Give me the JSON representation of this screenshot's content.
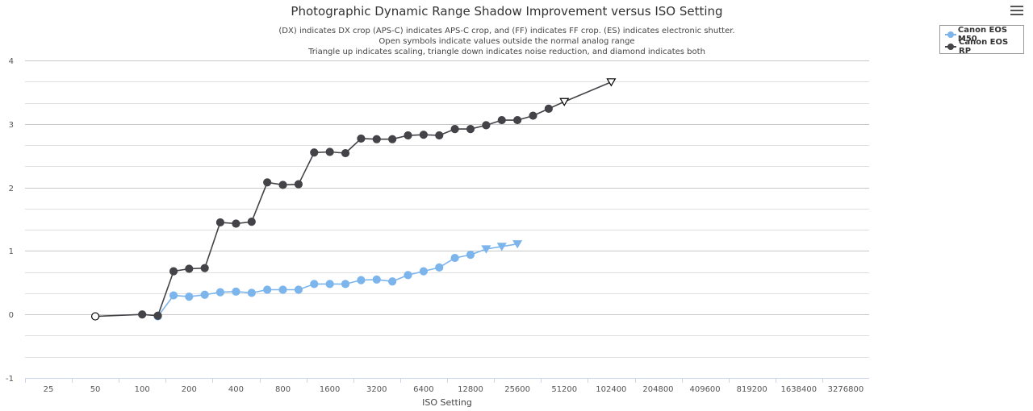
{
  "chart_data": {
    "type": "line",
    "title": "Photographic Dynamic Range Shadow Improvement versus ISO Setting",
    "subtitle_lines": [
      "(DX) indicates DX crop (APS-C) indicates APS-C crop, and (FF) indicates FF crop. (ES) indicates electronic shutter.",
      "Open symbols indicate values outside the normal analog range",
      "Triangle up indicates scaling, triangle down indicates noise reduction, and diamond indicates both"
    ],
    "xlabel": "ISO Setting",
    "ylabel": "",
    "x_scale": "log2",
    "x_ticks": [
      25,
      50,
      100,
      200,
      400,
      800,
      1600,
      3200,
      6400,
      12800,
      25600,
      51200,
      102400,
      204800,
      409600,
      819200,
      1638400,
      3276800
    ],
    "x_tick_labels": [
      "25",
      "50",
      "100",
      "200",
      "400",
      "800",
      "1600",
      "3200",
      "6400",
      "12800",
      "25600",
      "51200",
      "102400",
      "204800",
      "409600",
      "819200",
      "1638400",
      "3276800"
    ],
    "xlim": [
      17.7,
      4634000
    ],
    "y_ticks": [
      -1,
      0,
      1,
      2,
      3,
      4
    ],
    "ylim": [
      -1,
      4
    ],
    "grid": true,
    "legend_position": "top-right",
    "series": [
      {
        "name": "Canon EOS M50",
        "color": "#7cb5ec",
        "points": [
          {
            "x": 126,
            "y": -0.03,
            "marker": "circle"
          },
          {
            "x": 159,
            "y": 0.3,
            "marker": "circle"
          },
          {
            "x": 200,
            "y": 0.28,
            "marker": "circle"
          },
          {
            "x": 252,
            "y": 0.31,
            "marker": "circle"
          },
          {
            "x": 317,
            "y": 0.35,
            "marker": "circle"
          },
          {
            "x": 400,
            "y": 0.36,
            "marker": "circle"
          },
          {
            "x": 504,
            "y": 0.34,
            "marker": "circle"
          },
          {
            "x": 635,
            "y": 0.39,
            "marker": "circle"
          },
          {
            "x": 800,
            "y": 0.39,
            "marker": "circle"
          },
          {
            "x": 1008,
            "y": 0.39,
            "marker": "circle"
          },
          {
            "x": 1270,
            "y": 0.48,
            "marker": "circle"
          },
          {
            "x": 1600,
            "y": 0.48,
            "marker": "circle"
          },
          {
            "x": 2016,
            "y": 0.48,
            "marker": "circle"
          },
          {
            "x": 2540,
            "y": 0.54,
            "marker": "circle"
          },
          {
            "x": 3200,
            "y": 0.55,
            "marker": "circle"
          },
          {
            "x": 4032,
            "y": 0.52,
            "marker": "circle"
          },
          {
            "x": 5080,
            "y": 0.62,
            "marker": "circle"
          },
          {
            "x": 6400,
            "y": 0.68,
            "marker": "circle"
          },
          {
            "x": 8063,
            "y": 0.74,
            "marker": "circle"
          },
          {
            "x": 10159,
            "y": 0.89,
            "marker": "circle"
          },
          {
            "x": 12800,
            "y": 0.94,
            "marker": "circle"
          },
          {
            "x": 16127,
            "y": 1.03,
            "marker": "triangle-down"
          },
          {
            "x": 20319,
            "y": 1.07,
            "marker": "triangle-down"
          },
          {
            "x": 25600,
            "y": 1.11,
            "marker": "triangle-down"
          }
        ]
      },
      {
        "name": "Canon EOS RP",
        "color": "#434348",
        "points": [
          {
            "x": 50,
            "y": -0.03,
            "marker": "circle-open"
          },
          {
            "x": 100,
            "y": 0.0,
            "marker": "circle"
          },
          {
            "x": 126,
            "y": -0.02,
            "marker": "circle"
          },
          {
            "x": 159,
            "y": 0.68,
            "marker": "circle"
          },
          {
            "x": 200,
            "y": 0.72,
            "marker": "circle"
          },
          {
            "x": 252,
            "y": 0.73,
            "marker": "circle"
          },
          {
            "x": 317,
            "y": 1.45,
            "marker": "circle"
          },
          {
            "x": 400,
            "y": 1.43,
            "marker": "circle"
          },
          {
            "x": 504,
            "y": 1.46,
            "marker": "circle"
          },
          {
            "x": 635,
            "y": 2.08,
            "marker": "circle"
          },
          {
            "x": 800,
            "y": 2.04,
            "marker": "circle"
          },
          {
            "x": 1008,
            "y": 2.05,
            "marker": "circle"
          },
          {
            "x": 1270,
            "y": 2.55,
            "marker": "circle"
          },
          {
            "x": 1600,
            "y": 2.56,
            "marker": "circle"
          },
          {
            "x": 2016,
            "y": 2.54,
            "marker": "circle"
          },
          {
            "x": 2540,
            "y": 2.77,
            "marker": "circle"
          },
          {
            "x": 3200,
            "y": 2.76,
            "marker": "circle"
          },
          {
            "x": 4032,
            "y": 2.76,
            "marker": "circle"
          },
          {
            "x": 5080,
            "y": 2.82,
            "marker": "circle"
          },
          {
            "x": 6400,
            "y": 2.83,
            "marker": "circle"
          },
          {
            "x": 8063,
            "y": 2.82,
            "marker": "circle"
          },
          {
            "x": 10159,
            "y": 2.92,
            "marker": "circle"
          },
          {
            "x": 12800,
            "y": 2.92,
            "marker": "circle"
          },
          {
            "x": 16127,
            "y": 2.98,
            "marker": "circle"
          },
          {
            "x": 20319,
            "y": 3.06,
            "marker": "circle"
          },
          {
            "x": 25600,
            "y": 3.06,
            "marker": "circle"
          },
          {
            "x": 32254,
            "y": 3.13,
            "marker": "circle"
          },
          {
            "x": 40637,
            "y": 3.24,
            "marker": "circle"
          },
          {
            "x": 51200,
            "y": 3.35,
            "marker": "triangle-down-open"
          },
          {
            "x": 102400,
            "y": 3.66,
            "marker": "triangle-down-open"
          }
        ]
      }
    ]
  }
}
